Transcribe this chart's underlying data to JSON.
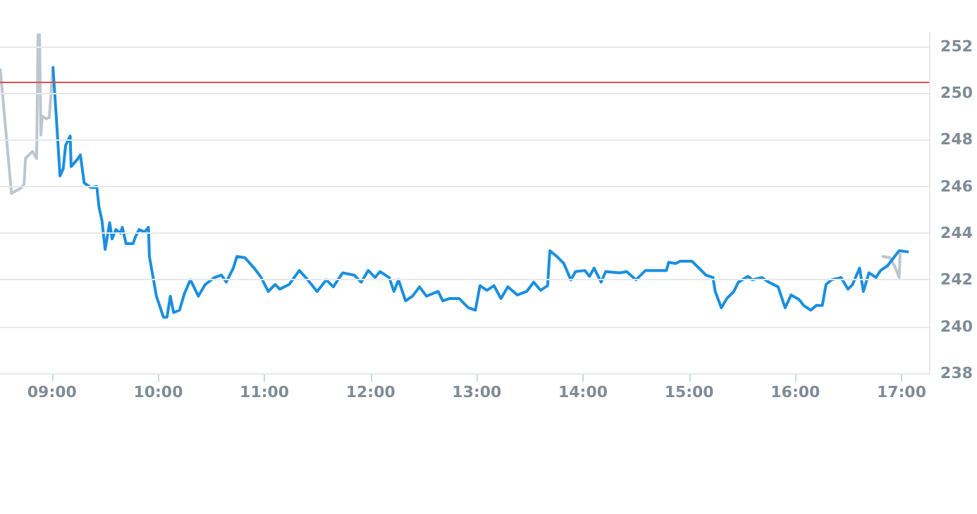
{
  "chart_data": {
    "type": "line",
    "xlim": [
      8.51,
      17.26
    ],
    "ylim": [
      238,
      252.6
    ],
    "xticks": [
      {
        "value": 9,
        "label": "09:00"
      },
      {
        "value": 10,
        "label": "10:00"
      },
      {
        "value": 11,
        "label": "11:00"
      },
      {
        "value": 12,
        "label": "12:00"
      },
      {
        "value": 13,
        "label": "13:00"
      },
      {
        "value": 14,
        "label": "14:00"
      },
      {
        "value": 15,
        "label": "15:00"
      },
      {
        "value": 16,
        "label": "16:00"
      },
      {
        "value": 17,
        "label": "17:00"
      }
    ],
    "yticks": [
      238,
      240,
      242,
      244,
      246,
      248,
      250,
      252
    ],
    "grid": "y",
    "marker": "none",
    "line_style": "solid",
    "ref_lines": [
      {
        "axis": "y",
        "value": 250.45,
        "color": "#d9534f"
      }
    ],
    "series": [
      {
        "color": "#bdc6cf",
        "x": [
          8.513,
          8.618,
          8.711,
          8.737,
          8.75,
          8.816,
          8.855,
          8.868,
          8.882,
          8.895,
          8.908,
          8.947,
          8.974,
          9.009
        ],
        "values": [
          251.0,
          245.7,
          245.95,
          246.1,
          247.2,
          247.5,
          247.2,
          252.5,
          252.5,
          248.2,
          249.0,
          248.9,
          248.95,
          251.1
        ]
      },
      {
        "color": "#bdc6cf",
        "x": [
          16.825,
          16.891,
          16.934,
          16.978,
          16.987
        ],
        "values": [
          243.0,
          242.95,
          242.6,
          242.1,
          243.1
        ]
      },
      {
        "color": "#1a8fe0",
        "x": [
          9.009,
          9.039,
          9.075,
          9.105,
          9.128,
          9.171,
          9.18,
          9.237,
          9.267,
          9.303,
          9.368,
          9.421,
          9.443,
          9.47,
          9.5,
          9.543,
          9.566,
          9.601,
          9.645,
          9.662,
          9.697,
          9.763,
          9.786,
          9.82,
          9.872,
          9.908,
          9.917,
          9.983,
          10.049,
          10.083,
          10.114,
          10.145,
          10.201,
          10.246,
          10.303,
          10.378,
          10.443,
          10.53,
          10.596,
          10.641,
          10.707,
          10.741,
          10.816,
          10.904,
          10.97,
          11.036,
          11.101,
          11.145,
          11.233,
          11.329,
          11.408,
          11.496,
          11.583,
          11.649,
          11.737,
          11.846,
          11.912,
          11.978,
          12.043,
          12.088,
          12.175,
          12.22,
          12.263,
          12.329,
          12.395,
          12.461,
          12.526,
          12.636,
          12.68,
          12.746,
          12.833,
          12.921,
          12.987,
          13.03,
          13.096,
          13.162,
          13.228,
          13.293,
          13.382,
          13.47,
          13.536,
          13.601,
          13.667,
          13.688,
          13.754,
          13.82,
          13.886,
          13.93,
          14.017,
          14.062,
          14.105,
          14.171,
          14.214,
          14.346,
          14.412,
          14.5,
          14.588,
          14.654,
          14.786,
          14.807,
          14.872,
          14.917,
          15.026,
          15.07,
          15.158,
          15.224,
          15.246,
          15.303,
          15.355,
          15.421,
          15.464,
          15.553,
          15.596,
          15.684,
          15.75,
          15.838,
          15.904,
          15.961,
          16.036,
          16.079,
          16.145,
          16.197,
          16.254,
          16.289,
          16.342,
          16.43,
          16.496,
          16.539,
          16.605,
          16.641,
          16.693,
          16.759,
          16.803,
          16.868,
          16.978,
          17.057
        ],
        "values": [
          251.1,
          249.06,
          246.45,
          246.75,
          247.76,
          248.16,
          246.85,
          247.15,
          247.35,
          246.15,
          245.95,
          246.0,
          245.1,
          244.55,
          243.3,
          244.45,
          243.75,
          244.15,
          244.0,
          244.25,
          243.55,
          243.55,
          243.85,
          244.15,
          244.05,
          244.25,
          243.0,
          241.3,
          240.4,
          240.4,
          241.3,
          240.6,
          240.7,
          241.4,
          242.0,
          241.3,
          241.8,
          242.1,
          242.2,
          241.9,
          242.5,
          243.0,
          242.95,
          242.5,
          242.1,
          241.5,
          241.8,
          241.6,
          241.8,
          242.4,
          242.0,
          241.5,
          242.0,
          241.7,
          242.3,
          242.2,
          241.9,
          242.4,
          242.1,
          242.35,
          242.1,
          241.5,
          242.0,
          241.1,
          241.3,
          241.7,
          241.3,
          241.5,
          241.1,
          241.2,
          241.2,
          240.8,
          240.7,
          241.75,
          241.55,
          241.75,
          241.2,
          241.7,
          241.35,
          241.5,
          241.9,
          241.55,
          241.75,
          243.25,
          243.0,
          242.7,
          242.0,
          242.35,
          242.4,
          242.15,
          242.5,
          241.9,
          242.35,
          242.3,
          242.35,
          242.0,
          242.4,
          242.4,
          242.4,
          242.75,
          242.7,
          242.8,
          242.8,
          242.6,
          242.2,
          242.1,
          241.5,
          240.8,
          241.2,
          241.5,
          241.9,
          242.15,
          242.0,
          242.1,
          241.9,
          241.7,
          240.8,
          241.35,
          241.15,
          240.9,
          240.7,
          240.9,
          240.9,
          241.8,
          242.0,
          242.1,
          241.6,
          241.8,
          242.5,
          241.5,
          242.3,
          242.1,
          242.4,
          242.6,
          243.25,
          243.2
        ]
      }
    ]
  }
}
